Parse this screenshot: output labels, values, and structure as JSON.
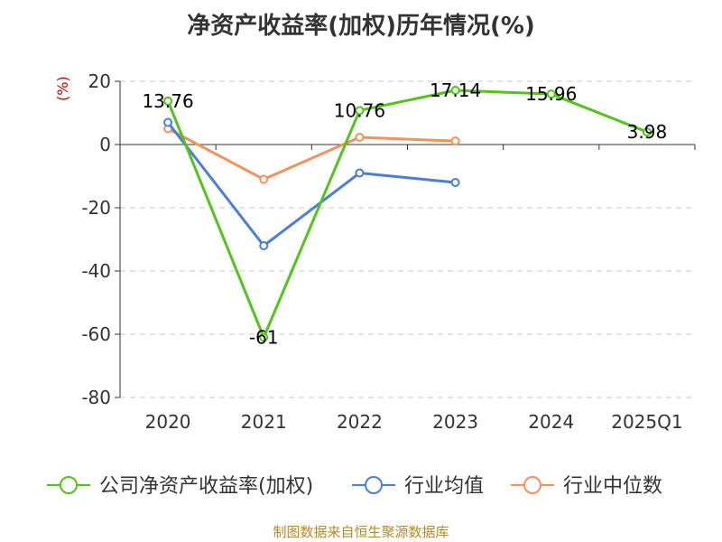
{
  "title": "净资产收益率(加权)历年情况(%)",
  "unit_label": "(%)",
  "source": "制图数据来自恒生聚源数据库",
  "colors": {
    "company": "#52c41a",
    "industry_avg": "#4a7fd8",
    "industry_median": "#f5915c",
    "grid": "#c8c8c8",
    "axis": "#333333",
    "unit": "#cc0000"
  },
  "chart_data": {
    "type": "line",
    "title": "净资产收益率(加权)历年情况(%)",
    "ylabel": "(%)",
    "xlabel": "",
    "categories": [
      "2020",
      "2021",
      "2022",
      "2023",
      "2024",
      "2025Q1"
    ],
    "ylim": [
      -80,
      20
    ],
    "yticks": [
      20,
      0,
      -20,
      -40,
      -60,
      -80
    ],
    "grid": true,
    "legend_position": "bottom",
    "series": [
      {
        "name": "公司净资产收益率(加权)",
        "color": "#52c41a",
        "values": [
          13.76,
          -61,
          10.76,
          17.14,
          15.96,
          3.98
        ],
        "labels": [
          "13.76",
          "-61",
          "10.76",
          "17.14",
          "15.96",
          "3.98"
        ]
      },
      {
        "name": "行业均值",
        "color": "#4a7fd8",
        "values": [
          7,
          -32,
          -9,
          -12,
          null,
          null
        ]
      },
      {
        "name": "行业中位数",
        "color": "#f5915c",
        "values": [
          5,
          -11,
          2.3,
          1.1,
          null,
          null
        ]
      }
    ]
  }
}
